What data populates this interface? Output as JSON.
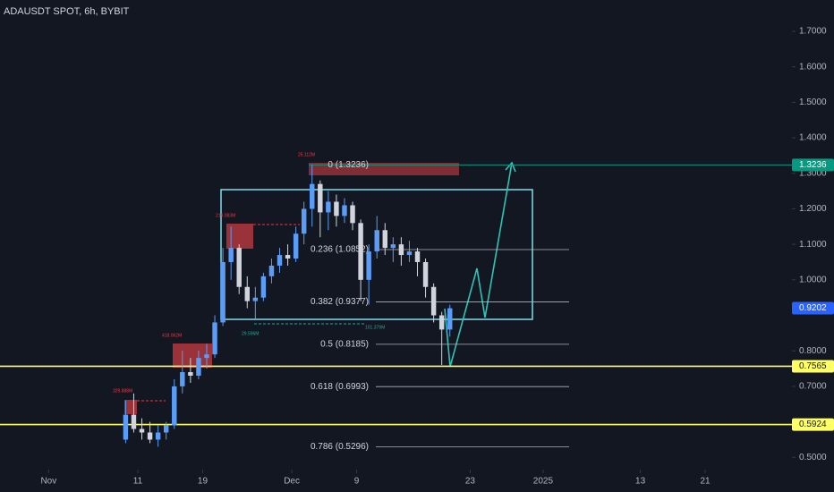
{
  "chart_data": {
    "type": "candlestick",
    "title": "ADAUSDT SPOT, 6h, BYBIT",
    "x": [
      9.5,
      10.5,
      11.5,
      12.5,
      13.5,
      14.5,
      15.5,
      16.5,
      17.5,
      18.5,
      19.5,
      20.5,
      21.5,
      22.5,
      23.5,
      24.5,
      25.5,
      26.5,
      27.5,
      28.5,
      29.5,
      30.5,
      31.5,
      32.5,
      33.5,
      34.5,
      35.5,
      36.5,
      37.5,
      38.5,
      39.5,
      40.5,
      41.5,
      42.5,
      43.5,
      44.5,
      45.5,
      46.5,
      47.5,
      48.5,
      49.5
    ],
    "open": [
      0.55,
      0.62,
      0.58,
      0.57,
      0.55,
      0.57,
      0.59,
      0.7,
      0.74,
      0.73,
      0.78,
      0.79,
      0.88,
      1.05,
      1.09,
      0.98,
      0.94,
      0.95,
      1.01,
      1.04,
      1.07,
      1.06,
      1.13,
      1.2,
      1.27,
      1.19,
      1.22,
      1.18,
      1.21,
      1.16,
      1.0,
      1.08,
      1.14,
      1.09,
      1.1,
      1.07,
      1.08,
      1.05,
      0.98,
      0.9,
      0.86
    ],
    "high": [
      0.66,
      0.68,
      0.61,
      0.6,
      0.59,
      0.6,
      0.72,
      0.8,
      0.78,
      0.8,
      0.82,
      0.9,
      1.09,
      1.15,
      1.1,
      1.01,
      0.98,
      1.02,
      1.06,
      1.09,
      1.1,
      1.15,
      1.22,
      1.3236,
      1.28,
      1.25,
      1.24,
      1.23,
      1.22,
      1.17,
      1.1,
      1.18,
      1.16,
      1.12,
      1.12,
      1.11,
      1.09,
      1.06,
      0.99,
      0.91,
      0.93
    ],
    "low": [
      0.54,
      0.57,
      0.55,
      0.54,
      0.53,
      0.55,
      0.58,
      0.68,
      0.71,
      0.72,
      0.75,
      0.78,
      0.87,
      1.0,
      0.96,
      0.92,
      0.89,
      0.94,
      0.99,
      1.02,
      1.04,
      1.05,
      1.1,
      1.15,
      1.12,
      1.14,
      1.15,
      1.16,
      1.14,
      0.94,
      0.93,
      1.06,
      1.07,
      1.05,
      1.04,
      1.05,
      1.01,
      0.95,
      0.88,
      0.76,
      0.84
    ],
    "close": [
      0.62,
      0.58,
      0.57,
      0.55,
      0.57,
      0.59,
      0.7,
      0.74,
      0.73,
      0.78,
      0.79,
      0.88,
      1.05,
      1.09,
      0.98,
      0.94,
      0.95,
      1.01,
      1.04,
      1.07,
      1.06,
      1.13,
      1.2,
      1.27,
      1.19,
      1.22,
      1.18,
      1.21,
      1.16,
      1.0,
      1.08,
      1.14,
      1.09,
      1.1,
      1.07,
      1.08,
      1.05,
      0.98,
      0.9,
      0.86,
      0.92
    ],
    "up_color": "#5b9cf6",
    "down_color": "#d1d4dc",
    "xlim": [
      -6,
      91.7
    ],
    "xticks": [
      {
        "value": 0,
        "label": "Nov"
      },
      11,
      19,
      {
        "value": 30,
        "label": "Dec"
      },
      {
        "value": 38,
        "label": "9"
      },
      {
        "value": 52,
        "label": "23"
      },
      {
        "value": 61,
        "label": "2025"
      },
      {
        "value": 73,
        "label": "13"
      },
      {
        "value": 81,
        "label": "21"
      }
    ],
    "ylim": [
      0.4654,
      1.7882
    ],
    "yticks": [
      {
        "value": 1.7,
        "label": "1.7000"
      },
      {
        "value": 1.6,
        "label": "1.6000"
      },
      {
        "value": 1.5,
        "label": "1.5000"
      },
      {
        "value": 1.4,
        "label": "1.4000"
      },
      {
        "value": 1.3,
        "label": "1.3000"
      },
      {
        "value": 1.2,
        "label": "1.2000"
      },
      {
        "value": 1.1,
        "label": "1.1000"
      },
      {
        "value": 1.0,
        "label": "1.0000"
      },
      {
        "value": 0.8,
        "label": "0.8000"
      },
      {
        "value": 0.7,
        "label": "0.7000"
      },
      {
        "value": 0.5,
        "label": "0.5000"
      }
    ],
    "fib_levels": [
      {
        "label": "0 (1.3236)",
        "price": 1.3236
      },
      {
        "label": "0.236 (1.0852)",
        "price": 1.0852
      },
      {
        "label": "0.382 (0.9377)",
        "price": 0.9377
      },
      {
        "label": "0.5 (0.8185)",
        "price": 0.8185
      },
      {
        "label": "0.618 (0.6993)",
        "price": 0.6993
      },
      {
        "label": "0.786 (0.5296)",
        "price": 0.5296
      }
    ],
    "levels": [
      {
        "price": 1.3236,
        "color": "#089981"
      },
      {
        "price": 0.9202,
        "color": "#2962ff"
      },
      {
        "price": 0.7565,
        "color": "#ffff66"
      },
      {
        "price": 0.5924,
        "color": "#ffff66"
      }
    ],
    "annotations": [
      "25.112M",
      "219.083M",
      "418.062M",
      "329.888M",
      "29.596M",
      "101.379M"
    ]
  }
}
